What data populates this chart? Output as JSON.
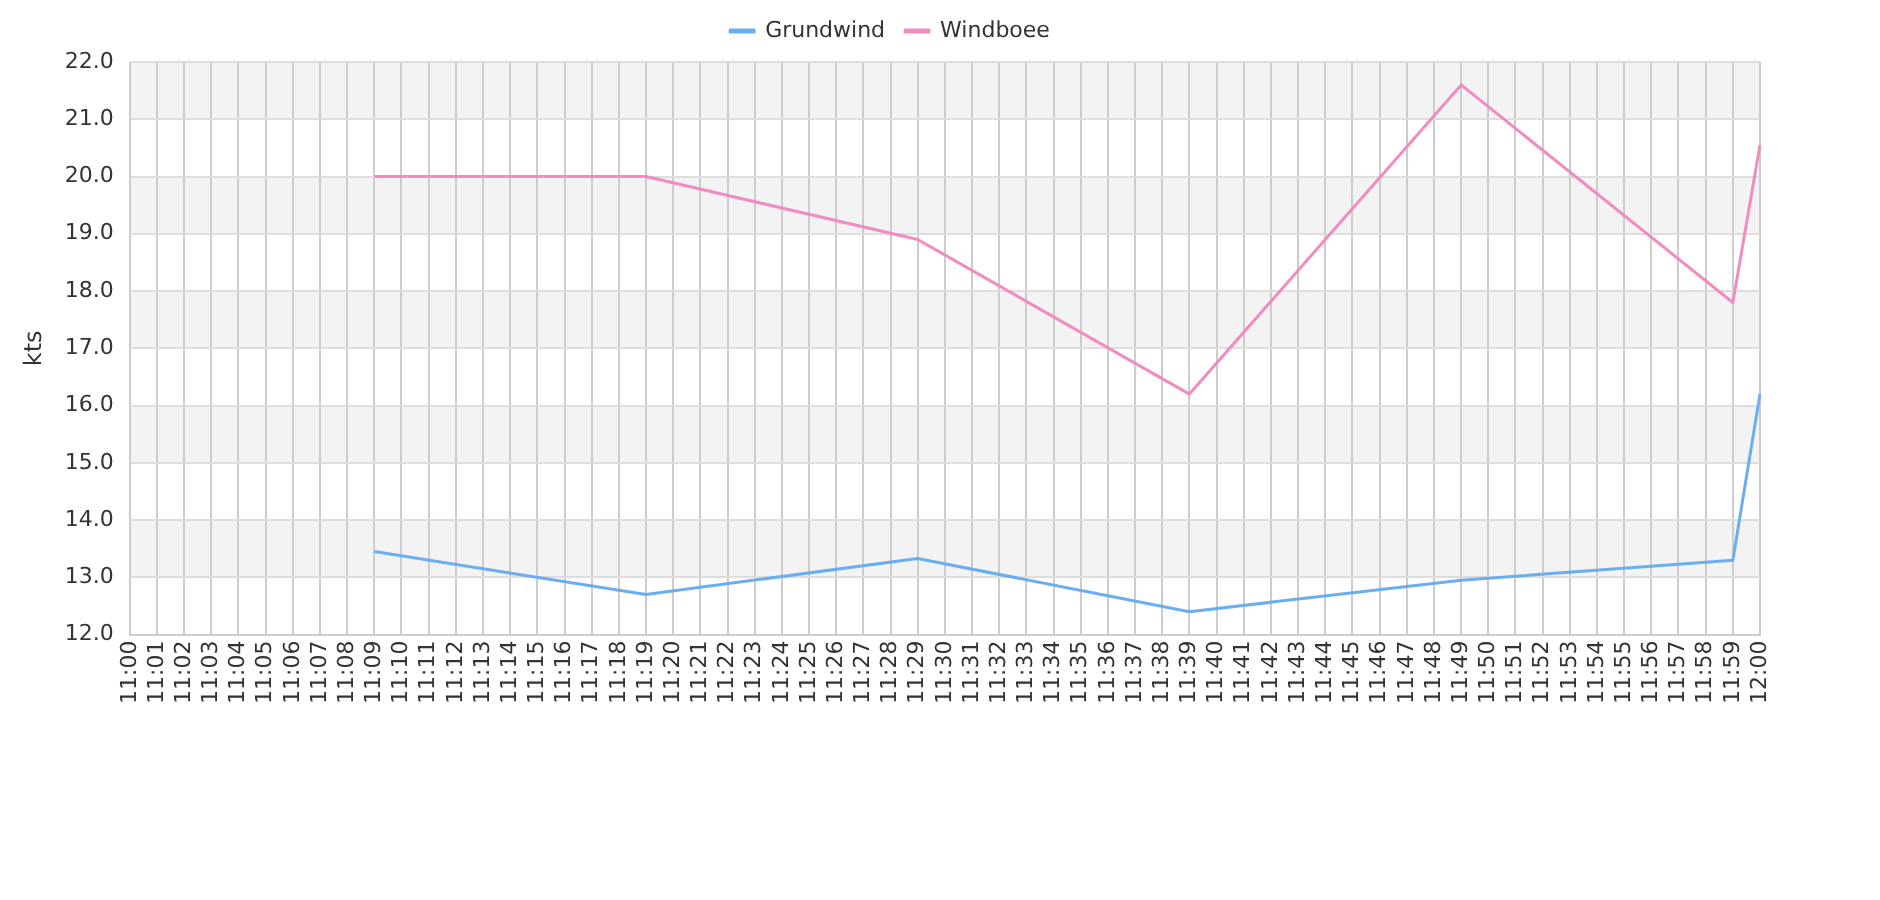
{
  "chart_data": {
    "type": "line",
    "ylabel": "kts",
    "categories": [
      "11:00",
      "11:01",
      "11:02",
      "11:03",
      "11:04",
      "11:05",
      "11:06",
      "11:07",
      "11:08",
      "11:09",
      "11:10",
      "11:11",
      "11:12",
      "11:13",
      "11:14",
      "11:15",
      "11:16",
      "11:17",
      "11:18",
      "11:19",
      "11:20",
      "11:21",
      "11:22",
      "11:23",
      "11:24",
      "11:25",
      "11:26",
      "11:27",
      "11:28",
      "11:29",
      "11:30",
      "11:31",
      "11:32",
      "11:33",
      "11:34",
      "11:35",
      "11:36",
      "11:37",
      "11:38",
      "11:39",
      "11:40",
      "11:41",
      "11:42",
      "11:43",
      "11:44",
      "11:45",
      "11:46",
      "11:47",
      "11:48",
      "11:49",
      "11:50",
      "11:51",
      "11:52",
      "11:53",
      "11:54",
      "11:55",
      "11:56",
      "11:57",
      "11:58",
      "11:59",
      "12:00"
    ],
    "series": [
      {
        "name": "Grundwind",
        "color": "#6aaef0",
        "values": [
          null,
          null,
          null,
          null,
          null,
          null,
          null,
          null,
          null,
          13.45,
          null,
          null,
          null,
          null,
          null,
          null,
          null,
          null,
          null,
          12.7,
          null,
          null,
          null,
          null,
          null,
          null,
          null,
          null,
          null,
          13.33,
          null,
          null,
          null,
          null,
          null,
          null,
          null,
          null,
          null,
          12.4,
          null,
          null,
          null,
          null,
          null,
          null,
          null,
          null,
          null,
          12.95,
          null,
          null,
          null,
          null,
          null,
          null,
          null,
          null,
          null,
          13.3,
          16.2
        ]
      },
      {
        "name": "Windboee",
        "color": "#f08cc0",
        "values": [
          null,
          null,
          null,
          null,
          null,
          null,
          null,
          null,
          null,
          20.0,
          null,
          null,
          null,
          null,
          null,
          null,
          null,
          null,
          null,
          20.0,
          null,
          null,
          null,
          null,
          null,
          null,
          null,
          null,
          null,
          18.9,
          null,
          null,
          null,
          null,
          null,
          null,
          null,
          null,
          null,
          16.2,
          null,
          null,
          null,
          null,
          null,
          null,
          null,
          null,
          null,
          21.6,
          null,
          null,
          null,
          null,
          null,
          null,
          null,
          null,
          null,
          17.8,
          20.55
        ]
      }
    ],
    "ylim": [
      12,
      22
    ],
    "yticks": [
      {
        "value": 12,
        "label": "12.0"
      },
      {
        "value": 13,
        "label": "13.0"
      },
      {
        "value": 14,
        "label": "14.0"
      },
      {
        "value": 15,
        "label": "15.0"
      },
      {
        "value": 16,
        "label": "16.0"
      },
      {
        "value": 17,
        "label": "17.0"
      },
      {
        "value": 18,
        "label": "18.0"
      },
      {
        "value": 19,
        "label": "19.0"
      },
      {
        "value": 20,
        "label": "20.0"
      },
      {
        "value": 21,
        "label": "21.0"
      },
      {
        "value": 22,
        "label": "22.0"
      }
    ],
    "grid": true,
    "legend": "top",
    "marker": "none",
    "line_style": "solid"
  }
}
